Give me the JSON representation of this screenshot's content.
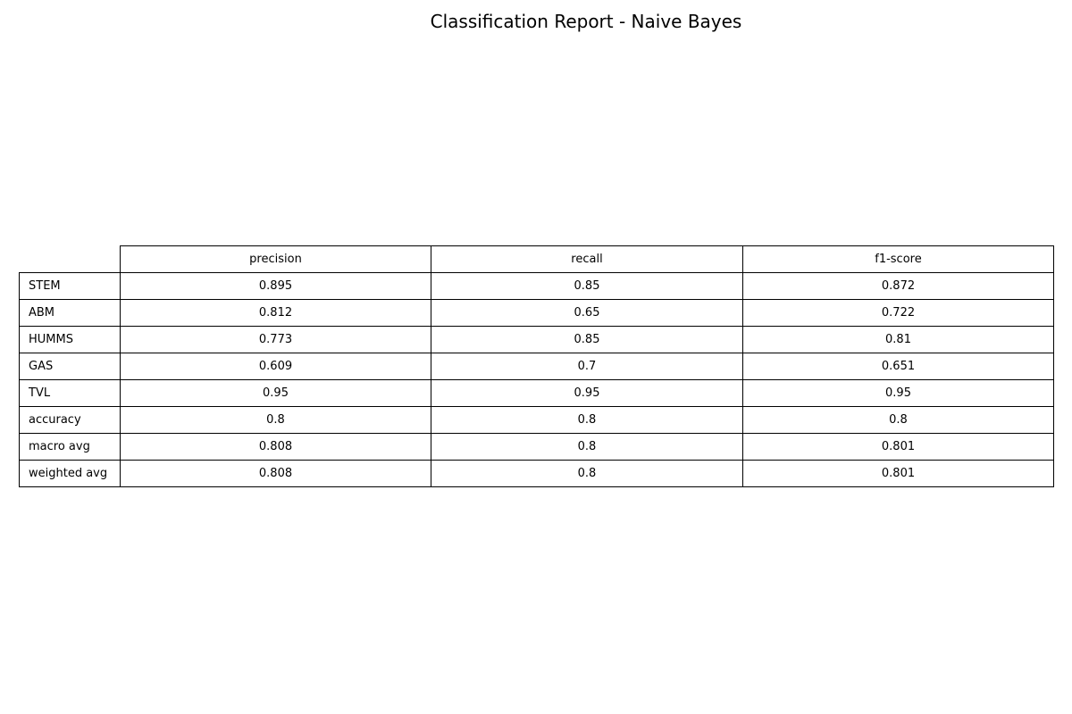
{
  "chart_data": {
    "type": "table",
    "title": "Classification Report - Naive Bayes",
    "columns": [
      "precision",
      "recall",
      "f1-score"
    ],
    "rows": [
      {
        "label": "STEM",
        "values": [
          "0.895",
          "0.85",
          "0.872"
        ]
      },
      {
        "label": "ABM",
        "values": [
          "0.812",
          "0.65",
          "0.722"
        ]
      },
      {
        "label": "HUMMS",
        "values": [
          "0.773",
          "0.85",
          "0.81"
        ]
      },
      {
        "label": "GAS",
        "values": [
          "0.609",
          "0.7",
          "0.651"
        ]
      },
      {
        "label": "TVL",
        "values": [
          "0.95",
          "0.95",
          "0.95"
        ]
      },
      {
        "label": "accuracy",
        "values": [
          "0.8",
          "0.8",
          "0.8"
        ]
      },
      {
        "label": "macro avg",
        "values": [
          "0.808",
          "0.8",
          "0.801"
        ]
      },
      {
        "label": "weighted avg",
        "values": [
          "0.808",
          "0.8",
          "0.801"
        ]
      }
    ]
  }
}
